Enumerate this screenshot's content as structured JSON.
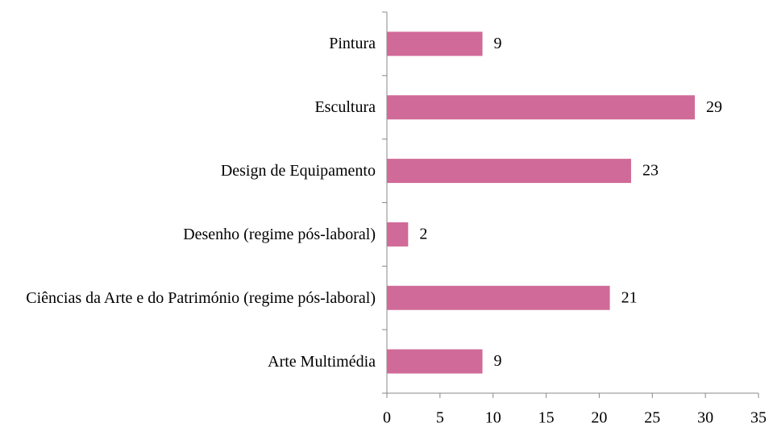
{
  "chart_data": {
    "type": "bar",
    "orientation": "horizontal",
    "categories": [
      "Pintura",
      "Escultura",
      "Design de Equipamento",
      "Desenho (regime pós-laboral)",
      "Ciências da Arte e do Património (regime pós-laboral)",
      "Arte Multimédia"
    ],
    "values": [
      9,
      29,
      23,
      2,
      21,
      9
    ],
    "color": "#d06a98",
    "xlim": [
      0,
      35
    ],
    "xticks": [
      0,
      5,
      10,
      15,
      20,
      25,
      30,
      35
    ],
    "grid": false
  }
}
